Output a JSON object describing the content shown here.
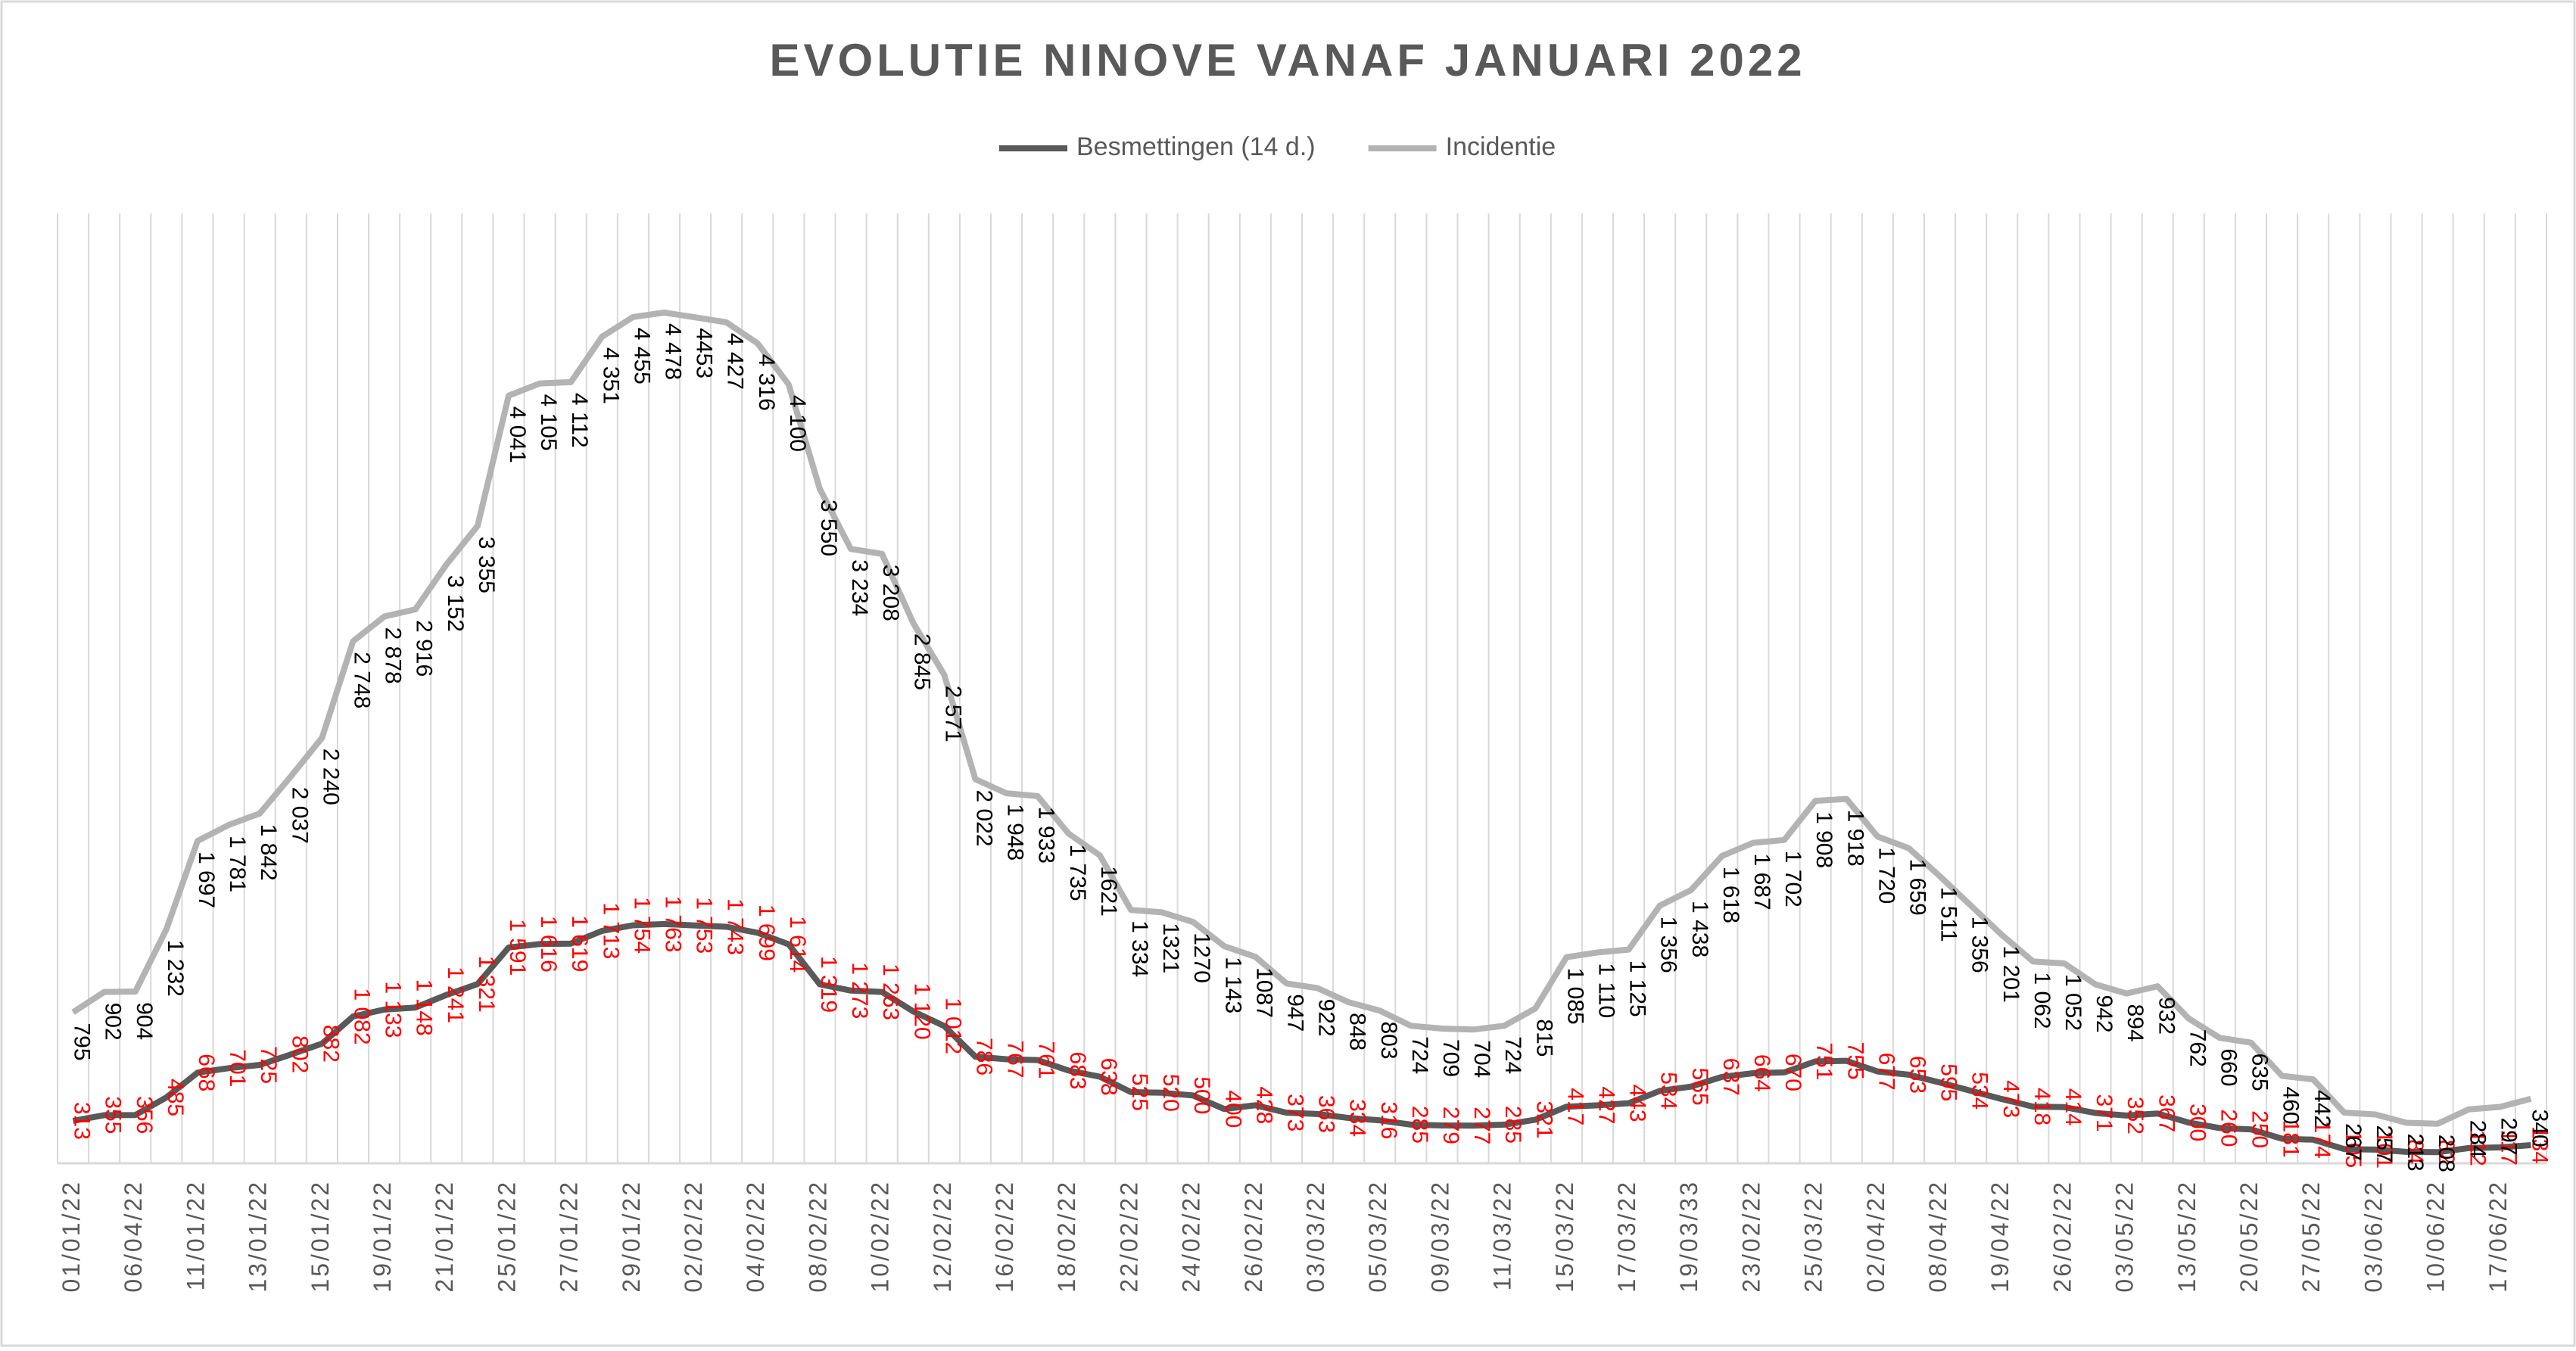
{
  "chart_data": {
    "type": "line",
    "title": "EVOLUTIE NINOVE VANAF JANUARI 2022",
    "categories": [
      "01/01/22",
      null,
      "06/04/22",
      null,
      "11/01/22",
      null,
      "13/01/22",
      null,
      "15/01/22",
      null,
      "19/01/22",
      null,
      "21/01/22",
      null,
      "25/01/22",
      null,
      "27/01/22",
      null,
      "29/01/22",
      null,
      "02/02/22",
      null,
      "04/02/22",
      null,
      "08/02/22",
      null,
      "10/02/22",
      null,
      "12/02/22",
      null,
      "16/02/22",
      null,
      "18/02/22",
      null,
      "22/02/22",
      null,
      "24/02/22",
      null,
      "26/02/22",
      null,
      "03/03/22",
      null,
      "05/03/22",
      null,
      "09/03/22",
      null,
      "11/03/22",
      null,
      "15/03/22",
      null,
      "17/03/22",
      null,
      "19/03/33",
      null,
      "23/02/22",
      null,
      "25/03/22",
      null,
      "02/04/22",
      null,
      "08/04/22",
      null,
      "19/04/22",
      null,
      "26/02/22",
      null,
      "03/05/22",
      null,
      "13/05/22",
      null,
      "20/05/22",
      null,
      "27/05/22",
      null,
      "03/06/22",
      null,
      "10/06/22",
      null,
      "17/06/22",
      null
    ],
    "series": [
      {
        "name": "Besmettingen (14 d.)",
        "color": "#595959",
        "axis": "y2",
        "label_color": "#ff0000",
        "values": [
          313,
          355,
          356,
          485,
          668,
          701,
          725,
          802,
          882,
          1082,
          1133,
          1148,
          1241,
          1321,
          1591,
          1616,
          1619,
          1713,
          1754,
          1763,
          1753,
          1743,
          1699,
          1614,
          1319,
          1273,
          1263,
          1120,
          1012,
          786,
          767,
          761,
          683,
          638,
          525,
          520,
          500,
          400,
          428,
          373,
          363,
          334,
          316,
          285,
          279,
          277,
          285,
          321,
          417,
          427,
          443,
          534,
          565,
          637,
          664,
          670,
          751,
          755,
          677,
          653,
          595,
          534,
          473,
          418,
          414,
          371,
          352,
          367,
          300,
          260,
          250,
          181,
          174,
          105,
          101,
          84,
          82,
          112,
          117,
          134
        ],
        "value_labels": [
          "313",
          "355",
          "356",
          "485",
          "668",
          "701",
          "725",
          "802",
          "882",
          "1 082",
          "1 133",
          "1 148",
          "1 241",
          "1 321",
          "1 591",
          "1 616",
          "1 619",
          "1 713",
          "1 754",
          "1 763",
          "1 753",
          "1 743",
          "1 699",
          "1 614",
          "1 319",
          "1 273",
          "1 263",
          "1 120",
          "1 012",
          "786",
          "767",
          "761",
          "683",
          "638",
          "525",
          "520",
          "500",
          "400",
          "428",
          "373",
          "363",
          "334",
          "316",
          "285",
          "279",
          "277",
          "285",
          "321",
          "417",
          "427",
          "443",
          "534",
          "565",
          "637",
          "664",
          "670",
          "751",
          "755",
          "677",
          "653",
          "595",
          "534",
          "473",
          "418",
          "414",
          "371",
          "352",
          "367",
          "300",
          "260",
          "250",
          "181",
          "174",
          "105",
          "101",
          "84",
          "82",
          "112",
          "117",
          "134"
        ]
      },
      {
        "name": "Incidentie",
        "color": "#b3b3b3",
        "label_color": "#000000",
        "values": [
          795,
          902,
          904,
          1232,
          1697,
          1781,
          1842,
          2037,
          2240,
          2748,
          2878,
          2916,
          3152,
          3355,
          4041,
          4105,
          4112,
          4351,
          4455,
          4478,
          4453,
          4427,
          4316,
          4100,
          3550,
          3234,
          3208,
          2845,
          2571,
          2022,
          1948,
          1933,
          1735,
          1621,
          1334,
          1321,
          1270,
          1143,
          1087,
          947,
          922,
          848,
          803,
          724,
          709,
          704,
          724,
          815,
          1085,
          1110,
          1125,
          1356,
          1438,
          1618,
          1687,
          1702,
          1908,
          1918,
          1720,
          1659,
          1511,
          1356,
          1201,
          1062,
          1052,
          942,
          894,
          932,
          762,
          660,
          635,
          460,
          442,
          267,
          257,
          213,
          208,
          284,
          297,
          340
        ],
        "value_labels": [
          "795",
          "902",
          "904",
          "1 232",
          "1 697",
          "1 781",
          "1 842",
          "2 037",
          "2 240",
          "2 748",
          "2 878",
          "2 916",
          "3 152",
          "3 355",
          "4 041",
          "4 105",
          "4 112",
          "4 351",
          "4 455",
          "4 478",
          "4453",
          "4 427",
          "4 316",
          "4 100",
          "3 550",
          "3 234",
          "3 208",
          "2 845",
          "2 571",
          "2 022",
          "1 948",
          "1 933",
          "1 735",
          "1621",
          "1 334",
          "1321",
          "1270",
          "1 143",
          "1087",
          "947",
          "922",
          "848",
          "803",
          "724",
          "709",
          "704",
          "724",
          "815",
          "1 085",
          "1 110",
          "1 125",
          "1 356",
          "1 438",
          "1 618",
          "1 687",
          "1 702",
          "1 908",
          "1 918",
          "1 720",
          "1 659",
          "1 511",
          "1 356",
          "1 201",
          "1 062",
          "1 052",
          "942",
          "894",
          "932",
          "762",
          "660",
          "635",
          "460",
          "442",
          "267",
          "257",
          "213",
          "208",
          "284",
          "297",
          "340"
        ]
      }
    ],
    "ylim": [
      0,
      5000
    ],
    "y2lim": [
      0,
      7000
    ],
    "xgrid": true,
    "legend": "top"
  }
}
